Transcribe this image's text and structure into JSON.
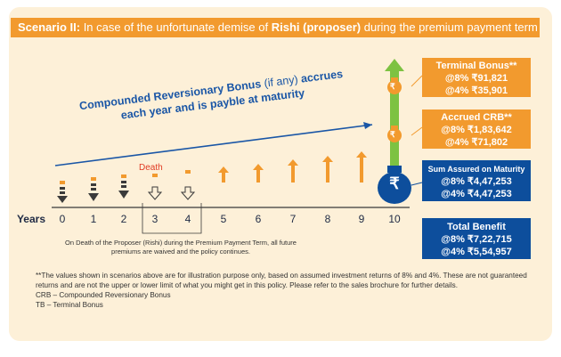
{
  "header": {
    "scenario": "Scenario II:",
    "text_before": " In case of the unfortunate demise of ",
    "name": "Rishi (proposer)",
    "text_after": " during the premium payment term"
  },
  "crb_label": {
    "line1_bold": "Compounded Reversionary Bonus",
    "line1_light": " (if any) ",
    "line1_end": "accrues",
    "line2": "each year and is payble at maturity"
  },
  "death_label": "Death",
  "years_label": "Years",
  "years": [
    "0",
    "1",
    "2",
    "3",
    "4",
    "5",
    "6",
    "7",
    "8",
    "9",
    "10"
  ],
  "boxes": {
    "terminal": {
      "title": "Terminal Bonus**",
      "v1": "@8% ₹91,821",
      "v2": "@4% ₹35,901"
    },
    "accrued": {
      "title": "Accrued CRB**",
      "v1": "@8% ₹1,83,642",
      "v2": "@4% ₹71,802"
    },
    "sum_assured": {
      "title": "Sum Assured on Maturity",
      "v1": "@8% ₹4,47,253",
      "v2": "@4% ₹4,47,253"
    },
    "total": {
      "title": "Total Benefit",
      "v1": "@8% ₹7,22,715",
      "v2": "@4% ₹5,54,957"
    }
  },
  "icons": {
    "rupee": "₹"
  },
  "note": "On Death of the Proposer (Rishi) during the Premium Payment Term, all future premiums are waived and the policy continues.",
  "footnotes": [
    "**The values shown in scenarios above are for illustration purpose only, based on assumed investment returns of 8% and 4%. These are not guaranteed returns and are not the upper or lower limit of what you might get in this policy. Please refer to the sales brochure for further details.",
    "CRB – Compounded Reversionary Bonus",
    "TB – Terminal Bonus"
  ],
  "colors": {
    "orange": "#f29a2e",
    "blue": "#0d4e9c",
    "green": "#7dc242",
    "dark": "#3a3a3a"
  }
}
